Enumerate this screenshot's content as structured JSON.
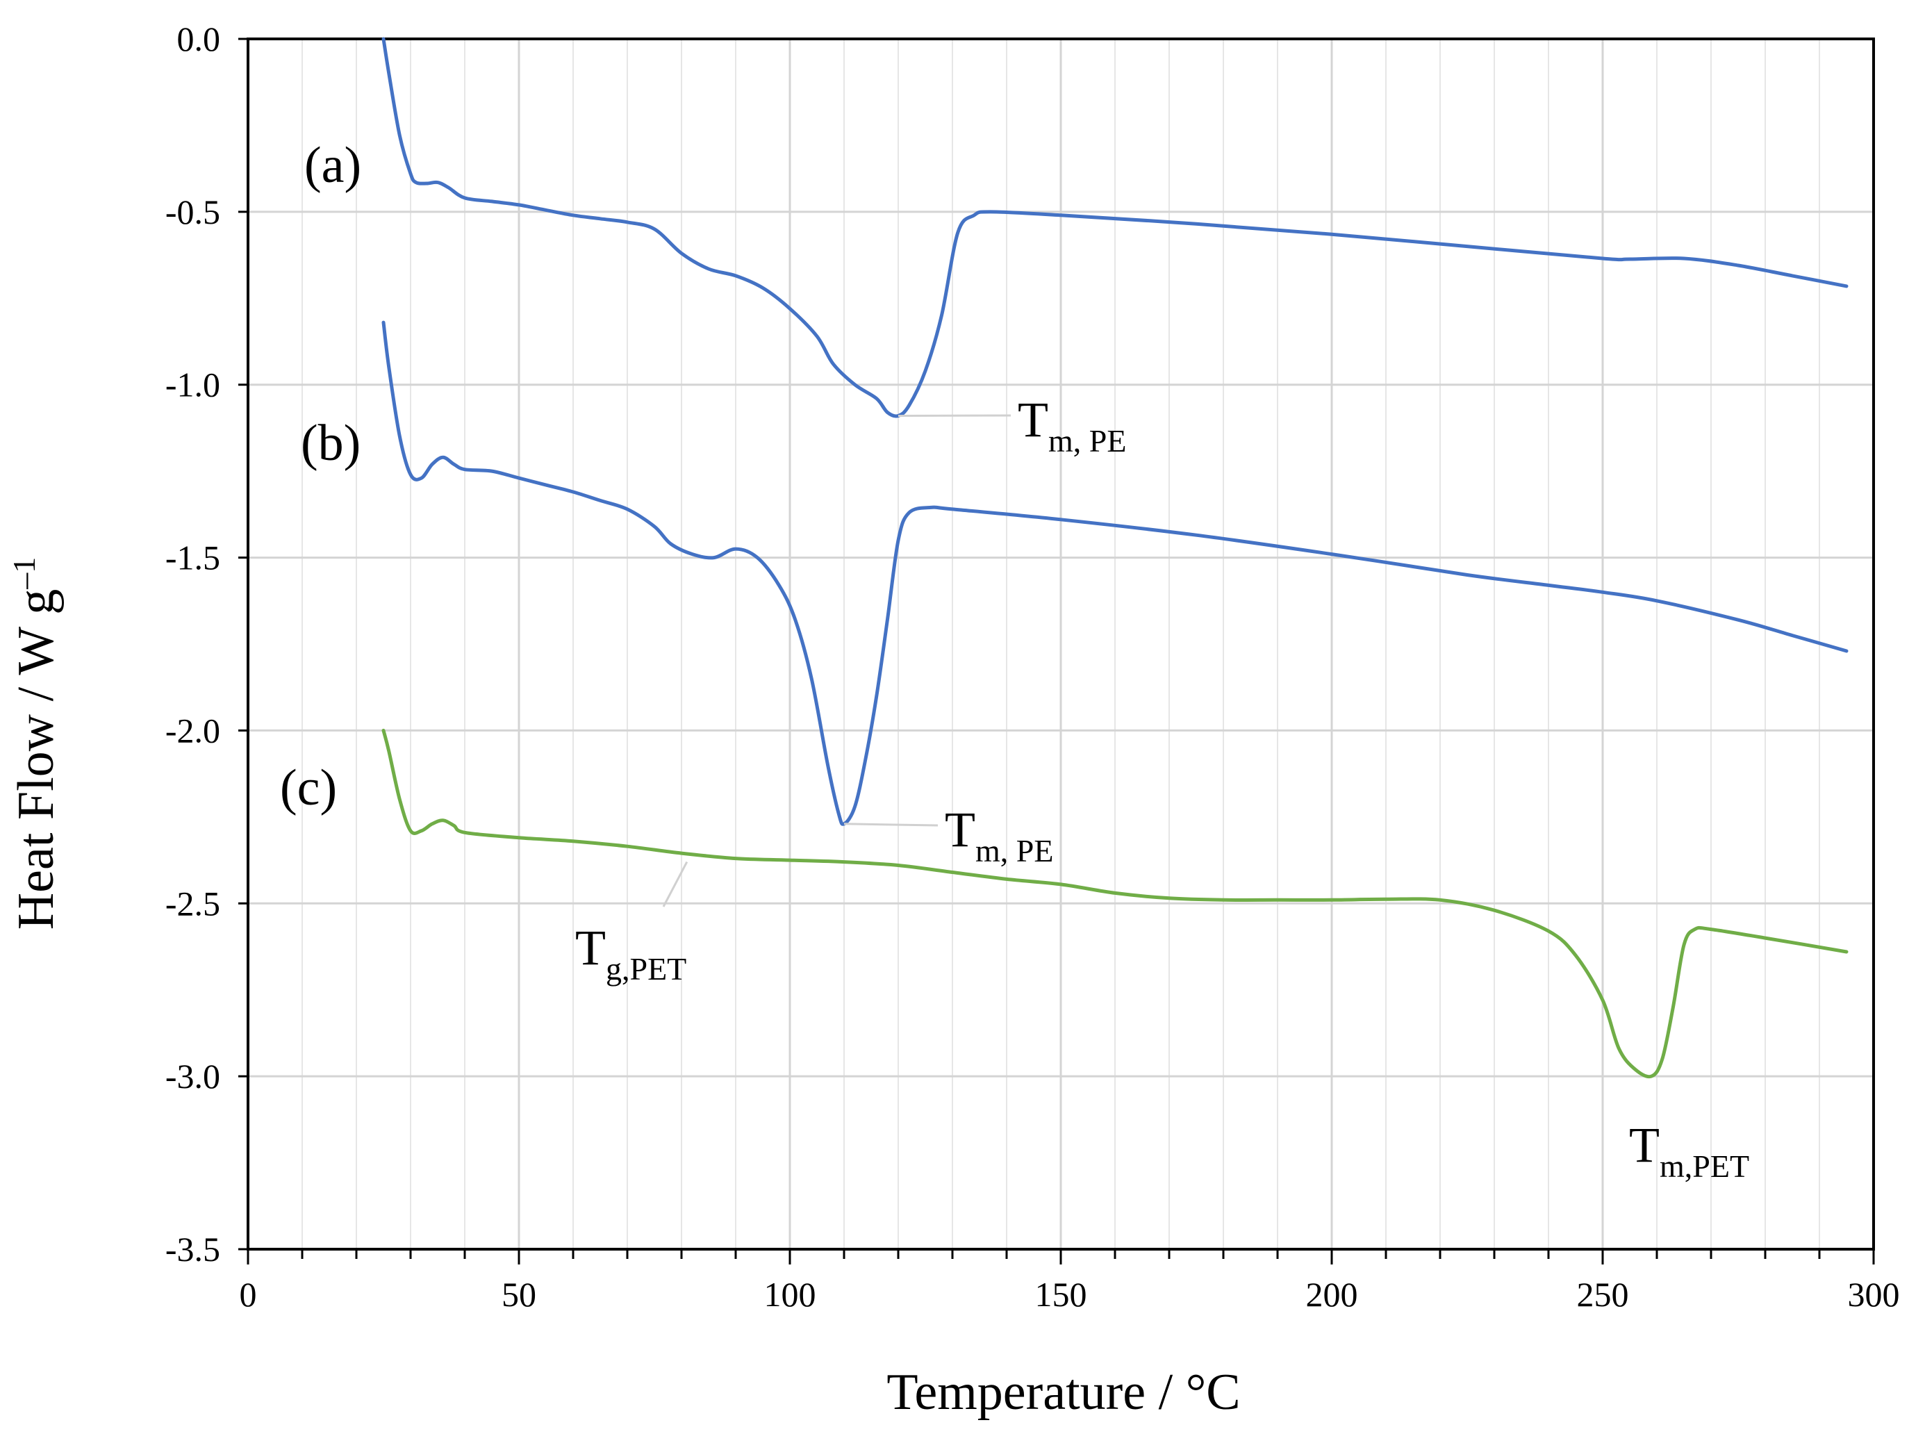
{
  "chart_data": {
    "type": "line",
    "title": "",
    "xlabel": "Temperature / °C",
    "ylabel_main": "Heat Flow / W g",
    "ylabel_sup": "–1",
    "xlim": [
      0,
      300
    ],
    "ylim": [
      -3.5,
      0.0
    ],
    "grid": true,
    "x_ticks": [
      0,
      50,
      100,
      150,
      200,
      250,
      300
    ],
    "x_tick_labels": [
      "0",
      "50",
      "100",
      "150",
      "200",
      "250",
      "300"
    ],
    "y_ticks": [
      0.0,
      -0.5,
      -1.0,
      -1.5,
      -2.0,
      -2.5,
      -3.0,
      -3.5
    ],
    "y_tick_labels": [
      "0.0",
      "-0.5",
      "-1.0",
      "-1.5",
      "-2.0",
      "-2.5",
      "-3.0",
      "-3.5"
    ],
    "series": [
      {
        "name": "(a)",
        "label": "(a)",
        "color": "#4472c4",
        "points": [
          [
            25,
            0.0
          ],
          [
            26,
            -0.1
          ],
          [
            28,
            -0.28
          ],
          [
            30,
            -0.39
          ],
          [
            31,
            -0.415
          ],
          [
            33,
            -0.418
          ],
          [
            35,
            -0.415
          ],
          [
            37,
            -0.43
          ],
          [
            40,
            -0.46
          ],
          [
            45,
            -0.47
          ],
          [
            50,
            -0.48
          ],
          [
            55,
            -0.495
          ],
          [
            60,
            -0.51
          ],
          [
            65,
            -0.52
          ],
          [
            70,
            -0.53
          ],
          [
            75,
            -0.55
          ],
          [
            80,
            -0.62
          ],
          [
            85,
            -0.665
          ],
          [
            90,
            -0.685
          ],
          [
            95,
            -0.72
          ],
          [
            100,
            -0.78
          ],
          [
            105,
            -0.86
          ],
          [
            108,
            -0.94
          ],
          [
            112,
            -1.0
          ],
          [
            116,
            -1.04
          ],
          [
            118,
            -1.08
          ],
          [
            120,
            -1.09
          ],
          [
            122,
            -1.06
          ],
          [
            125,
            -0.96
          ],
          [
            128,
            -0.8
          ],
          [
            131,
            -0.56
          ],
          [
            134,
            -0.51
          ],
          [
            137,
            -0.5
          ],
          [
            150,
            -0.51
          ],
          [
            175,
            -0.535
          ],
          [
            200,
            -0.565
          ],
          [
            225,
            -0.6
          ],
          [
            250,
            -0.635
          ],
          [
            255,
            -0.637
          ],
          [
            265,
            -0.635
          ],
          [
            275,
            -0.655
          ],
          [
            285,
            -0.685
          ],
          [
            295,
            -0.715
          ]
        ]
      },
      {
        "name": "(b)",
        "label": "(b)",
        "color": "#4472c4",
        "points": [
          [
            25,
            -0.82
          ],
          [
            26,
            -0.95
          ],
          [
            28,
            -1.15
          ],
          [
            30,
            -1.26
          ],
          [
            32,
            -1.27
          ],
          [
            34,
            -1.23
          ],
          [
            36,
            -1.21
          ],
          [
            38,
            -1.23
          ],
          [
            40,
            -1.245
          ],
          [
            45,
            -1.25
          ],
          [
            50,
            -1.27
          ],
          [
            55,
            -1.29
          ],
          [
            60,
            -1.31
          ],
          [
            65,
            -1.335
          ],
          [
            70,
            -1.36
          ],
          [
            75,
            -1.41
          ],
          [
            78,
            -1.46
          ],
          [
            82,
            -1.49
          ],
          [
            86,
            -1.5
          ],
          [
            90,
            -1.475
          ],
          [
            94,
            -1.5
          ],
          [
            98,
            -1.58
          ],
          [
            101,
            -1.68
          ],
          [
            104,
            -1.85
          ],
          [
            107,
            -2.1
          ],
          [
            109,
            -2.24
          ],
          [
            110,
            -2.27
          ],
          [
            112,
            -2.22
          ],
          [
            114,
            -2.08
          ],
          [
            116,
            -1.9
          ],
          [
            118,
            -1.68
          ],
          [
            120,
            -1.45
          ],
          [
            122,
            -1.37
          ],
          [
            126,
            -1.355
          ],
          [
            130,
            -1.36
          ],
          [
            150,
            -1.39
          ],
          [
            175,
            -1.435
          ],
          [
            200,
            -1.49
          ],
          [
            225,
            -1.55
          ],
          [
            240,
            -1.58
          ],
          [
            250,
            -1.6
          ],
          [
            260,
            -1.625
          ],
          [
            275,
            -1.68
          ],
          [
            285,
            -1.725
          ],
          [
            295,
            -1.77
          ]
        ]
      },
      {
        "name": "(c)",
        "label": "(c)",
        "color": "#70ad47",
        "points": [
          [
            25,
            -2.0
          ],
          [
            26,
            -2.06
          ],
          [
            28,
            -2.2
          ],
          [
            30,
            -2.29
          ],
          [
            32,
            -2.29
          ],
          [
            34,
            -2.27
          ],
          [
            36,
            -2.26
          ],
          [
            38,
            -2.275
          ],
          [
            40,
            -2.295
          ],
          [
            50,
            -2.31
          ],
          [
            60,
            -2.32
          ],
          [
            70,
            -2.335
          ],
          [
            80,
            -2.355
          ],
          [
            90,
            -2.37
          ],
          [
            100,
            -2.375
          ],
          [
            110,
            -2.38
          ],
          [
            120,
            -2.39
          ],
          [
            130,
            -2.41
          ],
          [
            140,
            -2.43
          ],
          [
            150,
            -2.445
          ],
          [
            160,
            -2.47
          ],
          [
            170,
            -2.485
          ],
          [
            180,
            -2.49
          ],
          [
            190,
            -2.49
          ],
          [
            200,
            -2.49
          ],
          [
            210,
            -2.488
          ],
          [
            220,
            -2.49
          ],
          [
            230,
            -2.52
          ],
          [
            240,
            -2.58
          ],
          [
            245,
            -2.65
          ],
          [
            250,
            -2.78
          ],
          [
            253,
            -2.92
          ],
          [
            256,
            -2.98
          ],
          [
            259,
            -3.0
          ],
          [
            261,
            -2.95
          ],
          [
            263,
            -2.8
          ],
          [
            265,
            -2.62
          ],
          [
            267,
            -2.575
          ],
          [
            270,
            -2.575
          ],
          [
            280,
            -2.6
          ],
          [
            295,
            -2.64
          ]
        ]
      }
    ],
    "annotations": [
      {
        "main": "T",
        "sub": "m, PE",
        "target": "peak of (a)"
      },
      {
        "main": "T",
        "sub": "m, PE",
        "target": "peak of (b)"
      },
      {
        "main": "T",
        "sub": "g,PET",
        "target": "glass transition of (c)"
      },
      {
        "main": "T",
        "sub": "m,PET",
        "target": "peak of (c)"
      }
    ]
  }
}
